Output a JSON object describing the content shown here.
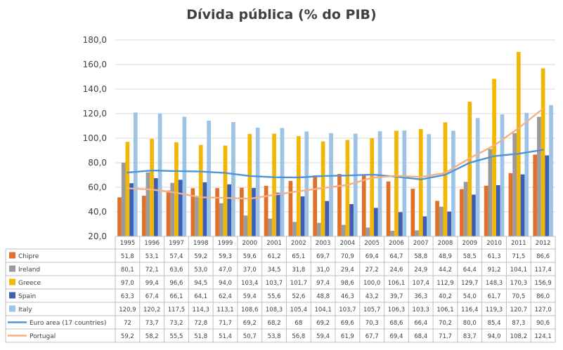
{
  "chart_data": {
    "type": "bar",
    "title": "Dívida pública (% do PIB)",
    "xlabel": "",
    "ylabel": "",
    "ylim": [
      20,
      180
    ],
    "yticks": [
      "20,0",
      "40,0",
      "60,0",
      "80,0",
      "100,0",
      "120,0",
      "140,0",
      "160,0",
      "180,0"
    ],
    "grid": true,
    "legend": "data-table-below",
    "categories": [
      "1995",
      "1996",
      "1997",
      "1998",
      "1999",
      "2000",
      "2001",
      "2002",
      "2003",
      "2004",
      "2005",
      "2006",
      "2007",
      "2008",
      "2009",
      "2010",
      "2011",
      "2012"
    ],
    "series": [
      {
        "name": "Chipre",
        "kind": "bar",
        "color": "#e0702a",
        "values": [
          51.8,
          53.1,
          57.4,
          59.2,
          59.3,
          59.6,
          61.2,
          65.1,
          69.7,
          70.9,
          69.4,
          64.7,
          58.8,
          48.9,
          58.5,
          61.3,
          71.5,
          86.6
        ],
        "labels": [
          "51,8",
          "53,1",
          "57,4",
          "59,2",
          "59,3",
          "59,6",
          "61,2",
          "65,1",
          "69,7",
          "70,9",
          "69,4",
          "64,7",
          "58,8",
          "48,9",
          "58,5",
          "61,3",
          "71,5",
          "86,6"
        ]
      },
      {
        "name": "Ireland",
        "kind": "bar",
        "color": "#9b9b9b",
        "values": [
          80.1,
          72.1,
          63.6,
          53.0,
          47.0,
          37.0,
          34.5,
          31.8,
          31.0,
          29.4,
          27.2,
          24.6,
          24.9,
          44.2,
          64.4,
          91.2,
          104.1,
          117.4
        ],
        "labels": [
          "80,1",
          "72,1",
          "63,6",
          "53,0",
          "47,0",
          "37,0",
          "34,5",
          "31,8",
          "31,0",
          "29,4",
          "27,2",
          "24,6",
          "24,9",
          "44,2",
          "64,4",
          "91,2",
          "104,1",
          "117,4"
        ]
      },
      {
        "name": "Greece",
        "kind": "bar",
        "color": "#f2b705",
        "values": [
          97.0,
          99.4,
          96.6,
          94.5,
          94.0,
          103.4,
          103.7,
          101.7,
          97.4,
          98.6,
          100.0,
          106.1,
          107.4,
          112.9,
          129.7,
          148.3,
          170.3,
          156.9
        ],
        "labels": [
          "97,0",
          "99,4",
          "96,6",
          "94,5",
          "94,0",
          "103,4",
          "103,7",
          "101,7",
          "97,4",
          "98,6",
          "100,0",
          "106,1",
          "107,4",
          "112,9",
          "129,7",
          "148,3",
          "170,3",
          "156,9"
        ]
      },
      {
        "name": "Spain",
        "kind": "bar",
        "color": "#3c5fb5",
        "values": [
          63.3,
          67.4,
          66.1,
          64.1,
          62.4,
          59.4,
          55.6,
          52.6,
          48.8,
          46.3,
          43.2,
          39.7,
          36.3,
          40.2,
          54.0,
          61.7,
          70.5,
          86.0
        ],
        "labels": [
          "63,3",
          "67,4",
          "66,1",
          "64,1",
          "62,4",
          "59,4",
          "55,6",
          "52,6",
          "48,8",
          "46,3",
          "43,2",
          "39,7",
          "36,3",
          "40,2",
          "54,0",
          "61,7",
          "70,5",
          "86,0"
        ]
      },
      {
        "name": "Italy",
        "kind": "bar",
        "color": "#9dc3e6",
        "values": [
          120.9,
          120.2,
          117.5,
          114.3,
          113.1,
          108.6,
          108.3,
          105.4,
          104.1,
          103.7,
          105.7,
          106.3,
          103.3,
          106.1,
          116.4,
          119.3,
          120.7,
          127.0
        ],
        "labels": [
          "120,9",
          "120,2",
          "117,5",
          "114,3",
          "113,1",
          "108,6",
          "108,3",
          "105,4",
          "104,1",
          "103,7",
          "105,7",
          "106,3",
          "103,3",
          "106,1",
          "116,4",
          "119,3",
          "120,7",
          "127,0"
        ]
      },
      {
        "name": "Euro area (17 countries)",
        "kind": "line",
        "color": "#4f95d6",
        "values": [
          72,
          73.7,
          73.2,
          72.8,
          71.7,
          69.2,
          68.2,
          68,
          69.2,
          69.6,
          70.3,
          68.6,
          66.4,
          70.2,
          80.0,
          85.4,
          87.3,
          90.6
        ],
        "labels": [
          "72",
          "73,7",
          "73,2",
          "72,8",
          "71,7",
          "69,2",
          "68,2",
          "68",
          "69,2",
          "69,6",
          "70,3",
          "68,6",
          "66,4",
          "70,2",
          "80,0",
          "85,4",
          "87,3",
          "90,6"
        ]
      },
      {
        "name": "Portugal",
        "kind": "line",
        "color": "#f4b183",
        "values": [
          59.2,
          58.2,
          55.5,
          51.8,
          51.4,
          50.7,
          53.8,
          56.8,
          59.4,
          61.9,
          67.7,
          69.4,
          68.4,
          71.7,
          83.7,
          94.0,
          108.2,
          124.1
        ],
        "labels": [
          "59,2",
          "58,2",
          "55,5",
          "51,8",
          "51,4",
          "50,7",
          "53,8",
          "56,8",
          "59,4",
          "61,9",
          "67,7",
          "69,4",
          "68,4",
          "71,7",
          "83,7",
          "94,0",
          "108,2",
          "124,1"
        ]
      }
    ]
  }
}
